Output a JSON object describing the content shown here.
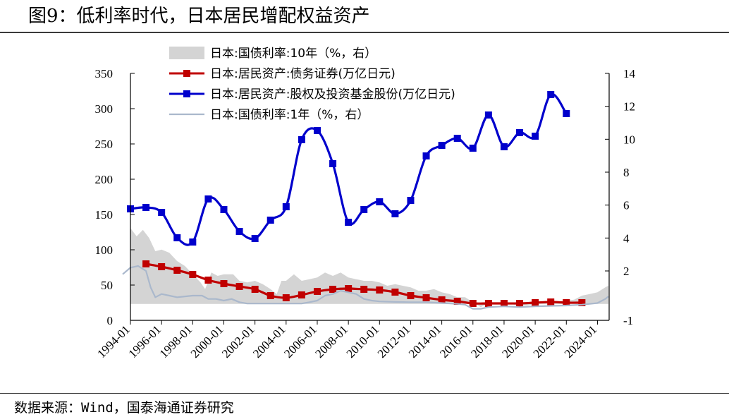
{
  "title": "图9：低利率时代，日本居民增配权益资产",
  "source": "数据来源：Wind，国泰海通证券研究",
  "chart_data": {
    "type": "line",
    "x_labels": [
      "1994-01",
      "1996-01",
      "1998-01",
      "2000-01",
      "2002-01",
      "2004-01",
      "2006-01",
      "2008-01",
      "2010-01",
      "2012-01",
      "2014-01",
      "2016-01",
      "2018-01",
      "2020-01",
      "2022-01",
      "2024-01"
    ],
    "y_left": {
      "min": 0,
      "max": 350,
      "ticks": [
        "0",
        "50",
        "100",
        "150",
        "200",
        "250",
        "300",
        "350"
      ]
    },
    "y_right": {
      "min": -1,
      "max": 14,
      "ticks": [
        "-1",
        "2",
        "4",
        "6",
        "8",
        "10",
        "12",
        "14"
      ]
    },
    "series": [
      {
        "name": "日本:国债利率:10年（%，右）",
        "axis": "right",
        "style": "area",
        "color": "#d4d4d4",
        "x": [
          1993.5,
          1994.0,
          1994.4,
          1994.8,
          1995.2,
          1995.6,
          1996.0,
          1996.5,
          1997.0,
          1997.5,
          1998.0,
          1998.5,
          1998.8,
          1999.2,
          1999.6,
          2000.0,
          2000.6,
          2001.0,
          2001.5,
          2002.0,
          2002.5,
          2003.0,
          2003.4,
          2003.7,
          2004.0,
          2004.5,
          2005.0,
          2005.5,
          2006.0,
          2006.5,
          2007.0,
          2007.5,
          2008.0,
          2008.5,
          2009.0,
          2009.5,
          2010.0,
          2010.5,
          2011.0,
          2011.5,
          2012.0,
          2012.5,
          2013.0,
          2013.5,
          2014.0,
          2014.5,
          2015.0,
          2015.5,
          2016.0,
          2016.5,
          2017.0,
          2018.0,
          2019.0,
          2019.5,
          2020.0,
          2021.0,
          2022.0,
          2022.5,
          2023.0,
          2023.5,
          2024.0,
          2024.5,
          2024.7
        ],
        "y": [
          3.5,
          4.6,
          4.1,
          4.5,
          4.0,
          3.2,
          3.3,
          3.1,
          2.6,
          2.3,
          1.8,
          1.3,
          0.9,
          1.9,
          1.7,
          1.8,
          1.8,
          1.4,
          1.3,
          1.4,
          1.2,
          0.9,
          0.6,
          1.4,
          1.4,
          1.8,
          1.4,
          1.5,
          1.6,
          1.9,
          1.7,
          1.9,
          1.6,
          1.5,
          1.4,
          1.4,
          1.3,
          1.1,
          1.2,
          1.1,
          1.0,
          0.8,
          0.8,
          0.9,
          0.7,
          0.6,
          0.4,
          0.4,
          0.1,
          -0.2,
          0.05,
          0.05,
          -0.1,
          -0.1,
          0.0,
          0.1,
          0.2,
          0.25,
          0.5,
          0.6,
          0.7,
          1.0,
          1.1
        ]
      },
      {
        "name": "日本:居民资产:债务证券(万亿日元)",
        "axis": "left",
        "style": "line-marker",
        "color": "#c00000",
        "x": [
          1995,
          1996,
          1997,
          1998,
          1999,
          2000,
          2001,
          2002,
          2003,
          2004,
          2005,
          2006,
          2007,
          2008,
          2009,
          2010,
          2011,
          2012,
          2013,
          2014,
          2015,
          2016,
          2017,
          2018,
          2019,
          2020,
          2021,
          2022,
          2023
        ],
        "y": [
          80,
          76,
          71,
          65,
          57,
          52,
          48,
          44,
          35,
          32,
          36,
          41,
          44,
          45,
          44,
          43,
          40,
          35,
          32,
          29,
          27,
          24,
          24,
          24,
          24,
          25,
          26,
          25,
          25
        ]
      },
      {
        "name": "日本:居民资产:股权及投资基金股份(万亿日元)",
        "axis": "left",
        "style": "line-marker",
        "color": "#0000cc",
        "x": [
          1994,
          1995,
          1996,
          1997,
          1998,
          1999,
          2000,
          2001,
          2002,
          2003,
          2004,
          2005,
          2006,
          2007,
          2008,
          2009,
          2010,
          2011,
          2012,
          2013,
          2014,
          2015,
          2016,
          2017,
          2018,
          2019,
          2020,
          2021,
          2022,
          2023
        ],
        "y": [
          158,
          160,
          153,
          117,
          111,
          172,
          157,
          126,
          116,
          142,
          161,
          256,
          269,
          222,
          139,
          157,
          168,
          151,
          170,
          233,
          248,
          258,
          244,
          291,
          246,
          266,
          261,
          320,
          293,
          null
        ]
      },
      {
        "name": "日本:国债利率:1年（%，右）",
        "axis": "right",
        "style": "line",
        "color": "#aab8cc",
        "x": [
          1993.5,
          1994.0,
          1994.5,
          1995.0,
          1995.3,
          1995.6,
          1996.0,
          1996.5,
          1997.0,
          1998.0,
          1998.6,
          1999.0,
          1999.5,
          2000.0,
          2000.5,
          2001.0,
          2001.5,
          2002.0,
          2003.0,
          2004.0,
          2005.0,
          2005.5,
          2006.0,
          2006.5,
          2007.0,
          2007.5,
          2008.0,
          2008.5,
          2009.0,
          2009.5,
          2010.0,
          2011.0,
          2012.0,
          2013.0,
          2014.0,
          2015.0,
          2015.5,
          2016.0,
          2016.5,
          2017.0,
          2018.0,
          2019.0,
          2020.0,
          2021.0,
          2022.0,
          2023.0,
          2023.5,
          2024.0,
          2024.5,
          2024.7
        ],
        "y": [
          1.8,
          2.2,
          2.3,
          2.0,
          1.0,
          0.4,
          0.6,
          0.5,
          0.4,
          0.5,
          0.5,
          0.3,
          0.3,
          0.2,
          0.3,
          0.1,
          0.02,
          0.02,
          0.02,
          0.02,
          0.02,
          0.1,
          0.2,
          0.5,
          0.6,
          0.8,
          0.7,
          0.6,
          0.3,
          0.2,
          0.15,
          0.12,
          0.1,
          0.1,
          0.05,
          0.0,
          -0.05,
          -0.3,
          -0.3,
          -0.2,
          -0.15,
          -0.2,
          -0.15,
          -0.12,
          -0.1,
          -0.05,
          0.0,
          0.05,
          0.3,
          0.45
        ]
      }
    ],
    "legend_position": "top-left",
    "grid": false,
    "xlabel": "",
    "ylabel_left": "",
    "ylabel_right": ""
  }
}
